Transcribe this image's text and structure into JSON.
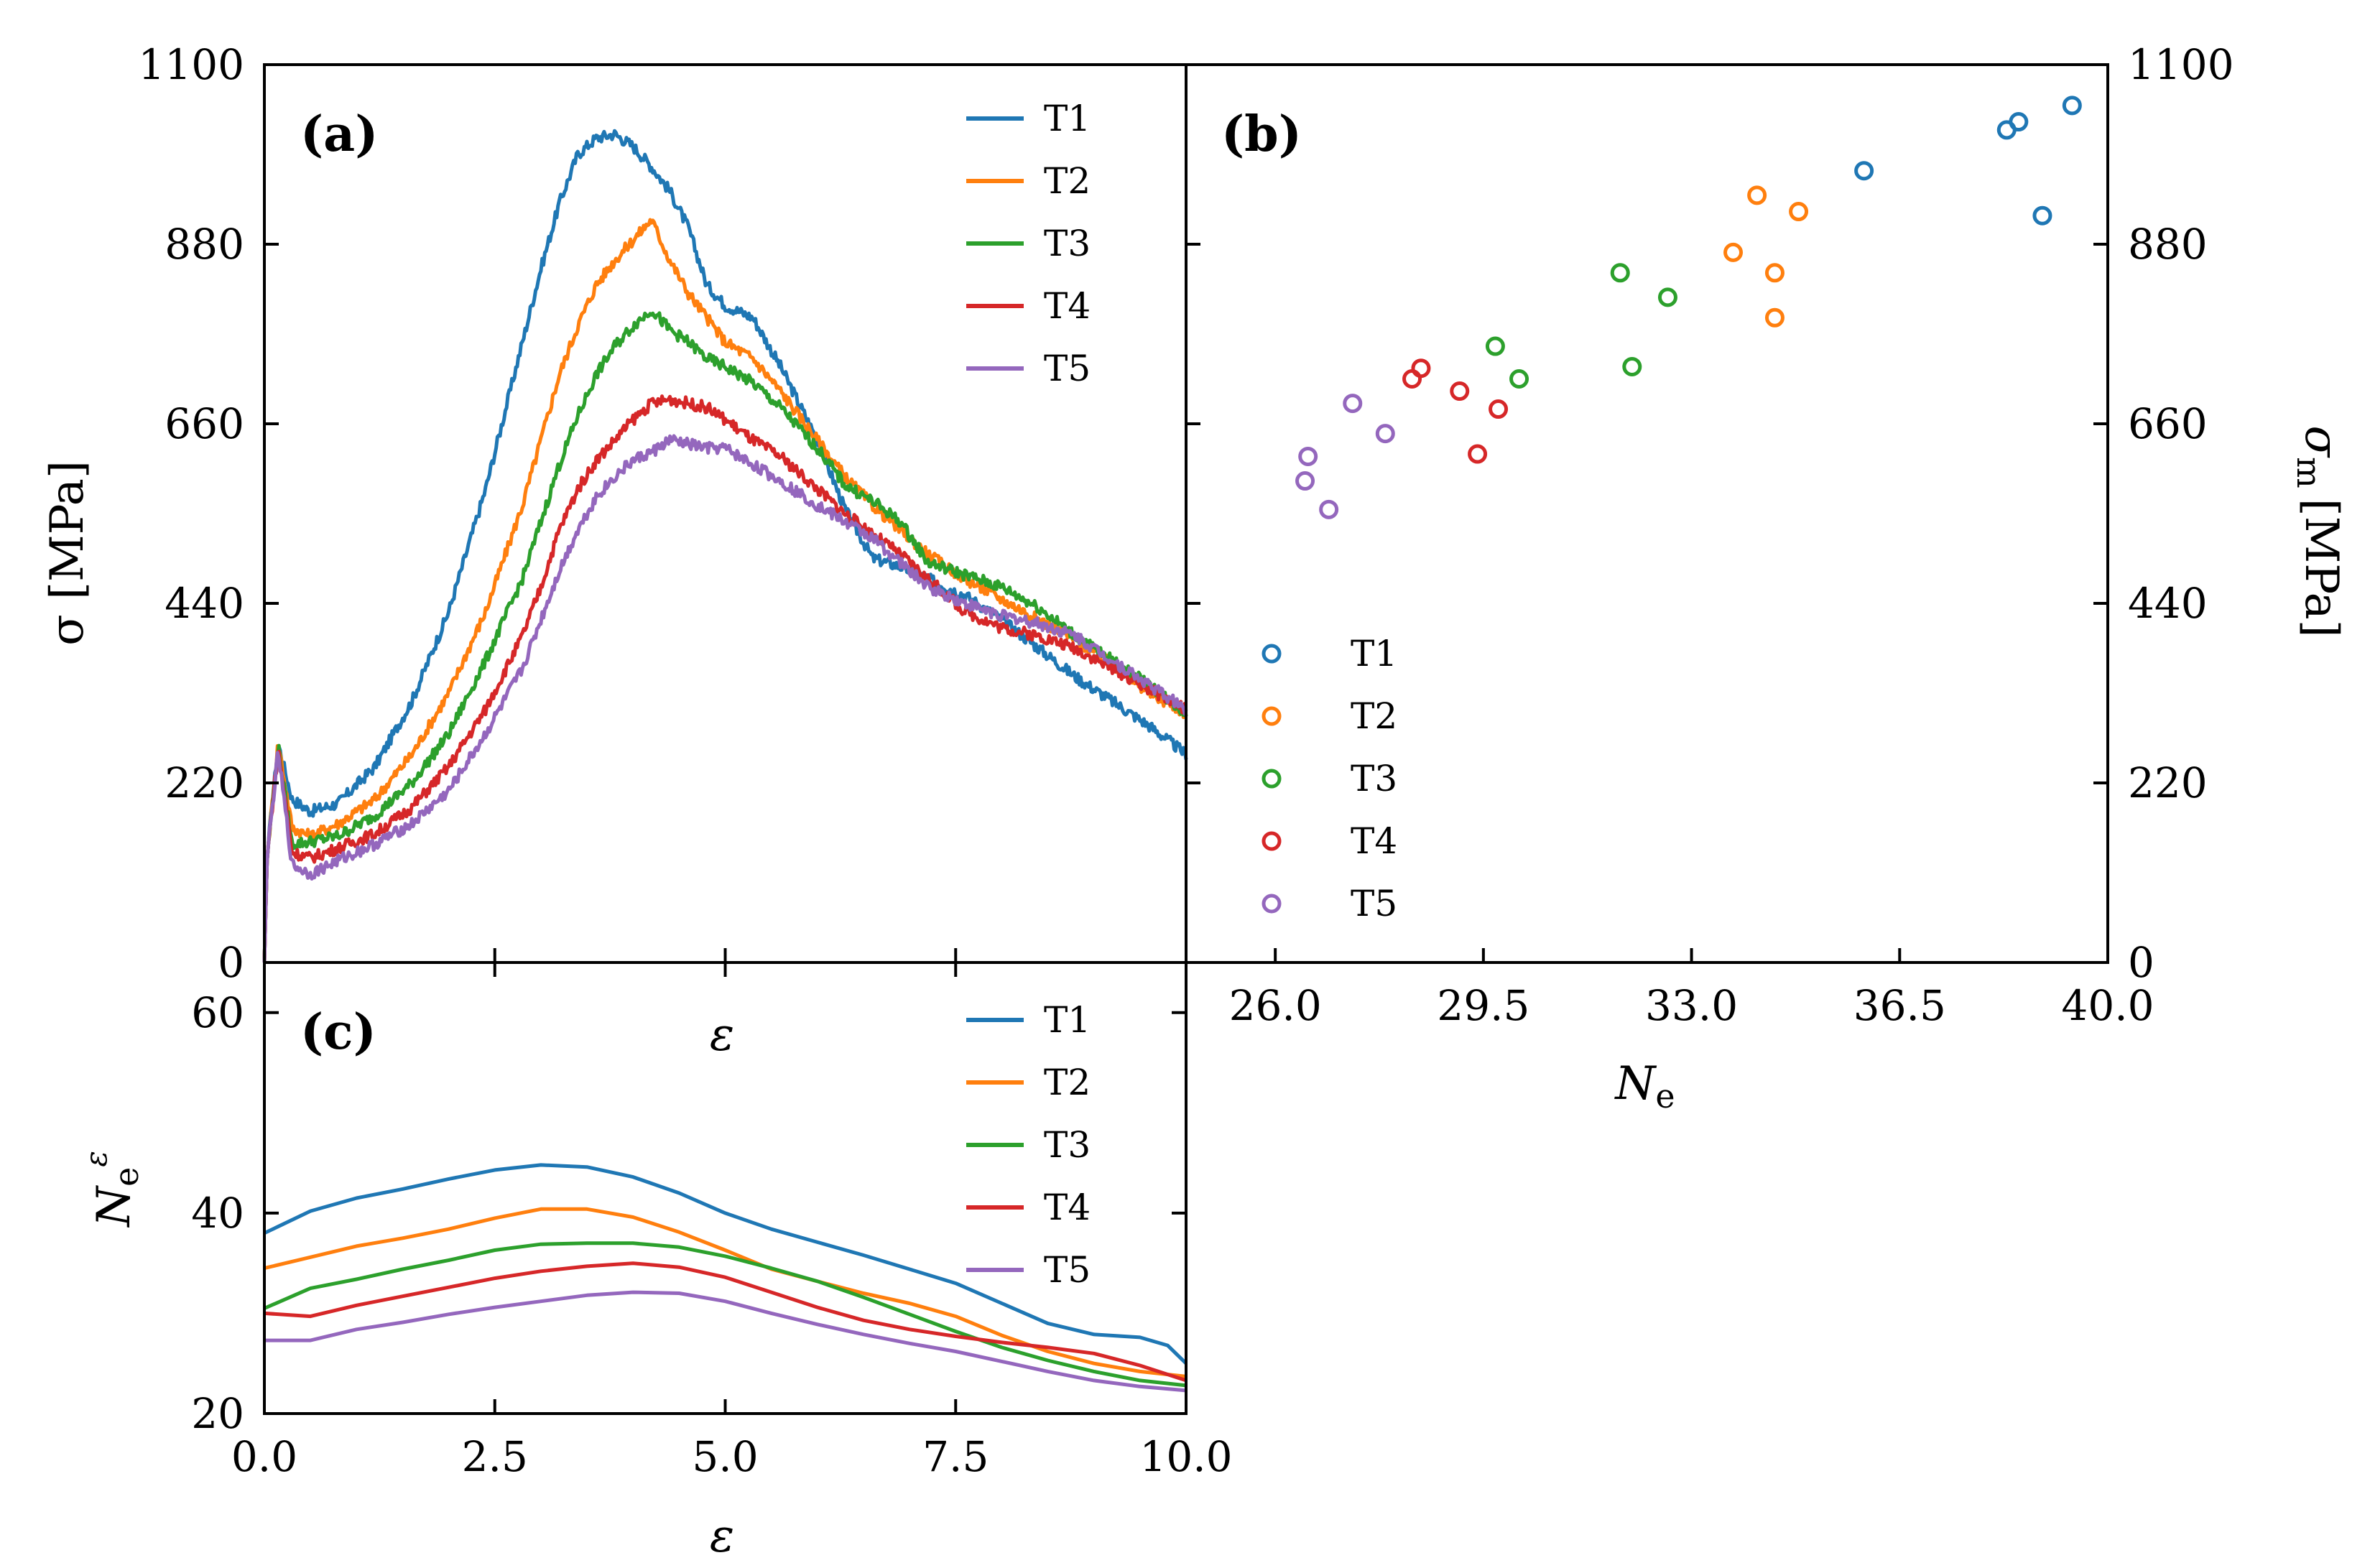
{
  "colors": {
    "T1": "#1f77b4",
    "T2": "#ff7f0e",
    "T3": "#2ca02c",
    "T4": "#d62728",
    "T5": "#9467bd"
  },
  "chart_data": [
    {
      "panel": "a",
      "panel_label": "(a)",
      "type": "line",
      "xlabel": "ε",
      "ylabel": "σ [MPa]",
      "xlim": [
        0,
        10
      ],
      "ylim": [
        0,
        1100
      ],
      "yticks": [
        0,
        220,
        440,
        660,
        880,
        1100
      ],
      "ytick_labels": [
        "0",
        "220",
        "440",
        "660",
        "880",
        "1100"
      ],
      "xticks": [
        2.5,
        5.0,
        7.5
      ],
      "legend": [
        "T1",
        "T2",
        "T3",
        "T4",
        "T5"
      ],
      "series": [
        {
          "name": "T1",
          "x": [
            0,
            0.03,
            0.15,
            0.3,
            0.5,
            0.8,
            1.2,
            1.6,
            2.0,
            2.4,
            2.8,
            3.0,
            3.2,
            3.4,
            3.6,
            3.8,
            4.0,
            4.2,
            4.4,
            4.6,
            4.8,
            5.0,
            5.3,
            5.6,
            6.0,
            6.3,
            6.6,
            6.9,
            7.2,
            7.6,
            8.0,
            8.4,
            8.8,
            9.2,
            9.6,
            10.0
          ],
          "y": [
            0,
            130,
            268,
            200,
            185,
            195,
            240,
            320,
            430,
            580,
            760,
            850,
            930,
            990,
            1010,
            1015,
            1000,
            975,
            945,
            900,
            830,
            805,
            790,
            730,
            640,
            555,
            495,
            485,
            470,
            450,
            420,
            385,
            350,
            320,
            290,
            255
          ]
        },
        {
          "name": "T2",
          "x": [
            0,
            0.03,
            0.15,
            0.3,
            0.5,
            0.8,
            1.2,
            1.6,
            2.0,
            2.4,
            2.8,
            3.0,
            3.2,
            3.4,
            3.6,
            3.8,
            4.0,
            4.2,
            4.4,
            4.6,
            4.8,
            5.0,
            5.3,
            5.6,
            6.0,
            6.3,
            6.6,
            6.9,
            7.2,
            7.6,
            8.0,
            8.4,
            8.8,
            9.2,
            9.6,
            10.0
          ],
          "y": [
            0,
            130,
            270,
            165,
            155,
            170,
            200,
            255,
            330,
            430,
            560,
            640,
            720,
            780,
            830,
            860,
            885,
            910,
            860,
            820,
            790,
            760,
            740,
            700,
            640,
            595,
            560,
            530,
            500,
            470,
            445,
            420,
            395,
            365,
            330,
            305
          ]
        },
        {
          "name": "T3",
          "x": [
            0,
            0.03,
            0.15,
            0.3,
            0.5,
            0.8,
            1.2,
            1.6,
            2.0,
            2.4,
            2.8,
            3.0,
            3.2,
            3.4,
            3.6,
            3.8,
            4.0,
            4.2,
            4.4,
            4.6,
            4.8,
            5.0,
            5.3,
            5.6,
            6.0,
            6.3,
            6.6,
            6.9,
            7.2,
            7.6,
            8.0,
            8.4,
            8.8,
            9.2,
            9.6,
            10.0
          ],
          "y": [
            0,
            130,
            265,
            145,
            148,
            155,
            180,
            220,
            280,
            370,
            470,
            540,
            610,
            670,
            720,
            755,
            780,
            800,
            775,
            760,
            740,
            730,
            710,
            680,
            630,
            585,
            565,
            540,
            490,
            475,
            460,
            435,
            400,
            370,
            340,
            305
          ]
        },
        {
          "name": "T4",
          "x": [
            0,
            0.03,
            0.15,
            0.3,
            0.5,
            0.8,
            1.2,
            1.6,
            2.0,
            2.4,
            2.8,
            3.0,
            3.2,
            3.4,
            3.6,
            3.8,
            4.0,
            4.2,
            4.4,
            4.6,
            4.8,
            5.0,
            5.3,
            5.6,
            6.0,
            6.3,
            6.6,
            6.9,
            7.2,
            7.6,
            8.0,
            8.4,
            8.8,
            9.2,
            9.6,
            10.0
          ],
          "y": [
            0,
            130,
            262,
            135,
            128,
            140,
            158,
            190,
            240,
            310,
            400,
            460,
            530,
            580,
            615,
            640,
            665,
            685,
            690,
            685,
            680,
            665,
            640,
            620,
            580,
            550,
            525,
            500,
            470,
            430,
            410,
            400,
            385,
            360,
            335,
            310
          ]
        },
        {
          "name": "T5",
          "x": [
            0,
            0.03,
            0.15,
            0.3,
            0.5,
            0.8,
            1.2,
            1.6,
            2.0,
            2.4,
            2.8,
            3.0,
            3.2,
            3.4,
            3.6,
            3.8,
            4.0,
            4.2,
            4.4,
            4.6,
            4.8,
            5.0,
            5.3,
            5.6,
            6.0,
            6.3,
            6.6,
            6.9,
            7.2,
            7.6,
            8.0,
            8.4,
            8.8,
            9.2,
            9.6,
            10.0
          ],
          "y": [
            0,
            130,
            258,
            120,
            108,
            125,
            145,
            170,
            210,
            280,
            360,
            420,
            480,
            530,
            570,
            595,
            615,
            625,
            640,
            635,
            630,
            630,
            610,
            590,
            560,
            540,
            520,
            490,
            460,
            440,
            425,
            415,
            400,
            370,
            340,
            310
          ]
        }
      ]
    },
    {
      "panel": "b",
      "panel_label": "(b)",
      "type": "scatter",
      "xlabel": "N_e",
      "xlabel_main": "N",
      "xlabel_sub": "e",
      "ylabel": "σ_m [MPa]",
      "ylabel_main": "σ",
      "ylabel_sub": "m",
      "ylabel_unit": "[MPa]",
      "xlim": [
        24.5,
        40
      ],
      "ylim": [
        0,
        1100
      ],
      "xticks": [
        26.0,
        29.5,
        33.0,
        36.5,
        40.0
      ],
      "xtick_labels": [
        "26.0",
        "29.5",
        "33.0",
        "36.5",
        "40.0"
      ],
      "yticks": [
        0,
        220,
        440,
        660,
        880,
        1100
      ],
      "ytick_labels": [
        "0",
        "220",
        "440",
        "660",
        "880",
        "1100"
      ],
      "legend": [
        "T1",
        "T2",
        "T3",
        "T4",
        "T5"
      ],
      "series": [
        {
          "name": "T1",
          "x": [
            35.9,
            38.3,
            38.5,
            38.9,
            39.4
          ],
          "y": [
            970,
            1020,
            1030,
            915,
            1050
          ]
        },
        {
          "name": "T2",
          "x": [
            33.7,
            34.1,
            34.4,
            34.4,
            34.8
          ],
          "y": [
            870,
            940,
            845,
            790,
            920
          ]
        },
        {
          "name": "T3",
          "x": [
            29.7,
            30.1,
            31.8,
            32.0,
            32.6
          ],
          "y": [
            755,
            715,
            845,
            730,
            815
          ]
        },
        {
          "name": "T4",
          "x": [
            28.3,
            28.45,
            29.1,
            29.4,
            29.75
          ],
          "y": [
            715,
            728,
            700,
            623,
            678
          ]
        },
        {
          "name": "T5",
          "x": [
            26.5,
            26.55,
            26.9,
            27.3,
            27.85
          ],
          "y": [
            590,
            620,
            555,
            685,
            648
          ]
        }
      ]
    },
    {
      "panel": "c",
      "panel_label": "(c)",
      "type": "line",
      "xlabel": "ε",
      "ylabel": "N_e^ε",
      "ylabel_main": "N",
      "ylabel_sub": "e",
      "ylabel_sup": "ε",
      "xlim": [
        0,
        10
      ],
      "ylim": [
        20,
        65
      ],
      "xticks": [
        0.0,
        2.5,
        5.0,
        7.5,
        10.0
      ],
      "xtick_labels": [
        "0.0",
        "2.5",
        "5.0",
        "7.5",
        "10.0"
      ],
      "yticks": [
        20,
        40,
        60
      ],
      "ytick_labels": [
        "20",
        "40",
        "60"
      ],
      "legend": [
        "T1",
        "T2",
        "T3",
        "T4",
        "T5"
      ],
      "series": [
        {
          "name": "T1",
          "x": [
            0,
            0.5,
            1.0,
            1.5,
            2.0,
            2.5,
            3.0,
            3.5,
            4.0,
            4.5,
            5.0,
            5.5,
            6.0,
            6.5,
            7.0,
            7.5,
            8.0,
            8.5,
            9.0,
            9.5,
            9.8,
            10.0
          ],
          "y": [
            38.0,
            40.2,
            41.5,
            42.4,
            43.4,
            44.3,
            44.8,
            44.6,
            43.6,
            42.0,
            40.0,
            38.4,
            37.1,
            35.8,
            34.4,
            33.0,
            31.0,
            29.0,
            27.9,
            27.6,
            26.8,
            25.0
          ]
        },
        {
          "name": "T2",
          "x": [
            0,
            0.5,
            1.0,
            1.5,
            2.0,
            2.5,
            3.0,
            3.5,
            4.0,
            4.5,
            5.0,
            5.5,
            6.0,
            6.5,
            7.0,
            7.5,
            8.0,
            8.5,
            9.0,
            9.5,
            10.0
          ],
          "y": [
            34.5,
            35.6,
            36.7,
            37.5,
            38.4,
            39.5,
            40.4,
            40.4,
            39.6,
            38.1,
            36.3,
            34.4,
            33.2,
            32.0,
            31.0,
            29.7,
            27.8,
            26.2,
            25.0,
            24.2,
            23.7
          ]
        },
        {
          "name": "T3",
          "x": [
            0,
            0.5,
            1.0,
            1.5,
            2.0,
            2.5,
            3.0,
            3.5,
            4.0,
            4.5,
            5.0,
            5.5,
            6.0,
            6.5,
            7.0,
            7.5,
            8.0,
            8.5,
            9.0,
            9.5,
            10.0
          ],
          "y": [
            30.5,
            32.5,
            33.4,
            34.4,
            35.3,
            36.3,
            36.9,
            37.0,
            37.0,
            36.6,
            35.7,
            34.5,
            33.2,
            31.6,
            29.9,
            28.2,
            26.6,
            25.3,
            24.2,
            23.3,
            22.8
          ]
        },
        {
          "name": "T4",
          "x": [
            0,
            0.5,
            1.0,
            1.5,
            2.0,
            2.5,
            3.0,
            3.5,
            4.0,
            4.5,
            5.0,
            5.5,
            6.0,
            6.5,
            7.0,
            7.5,
            8.0,
            8.5,
            9.0,
            9.5,
            10.0
          ],
          "y": [
            30.0,
            29.7,
            30.8,
            31.7,
            32.6,
            33.5,
            34.2,
            34.7,
            35.0,
            34.6,
            33.6,
            32.1,
            30.6,
            29.3,
            28.4,
            27.7,
            27.1,
            26.6,
            26.0,
            24.8,
            23.3
          ]
        },
        {
          "name": "T5",
          "x": [
            0,
            0.5,
            1.0,
            1.5,
            2.0,
            2.5,
            3.0,
            3.5,
            4.0,
            4.5,
            5.0,
            5.5,
            6.0,
            6.5,
            7.0,
            7.5,
            8.0,
            8.5,
            9.0,
            9.5,
            10.0
          ],
          "y": [
            27.3,
            27.3,
            28.4,
            29.1,
            29.9,
            30.6,
            31.2,
            31.8,
            32.1,
            32.0,
            31.2,
            30.0,
            28.9,
            27.9,
            27.0,
            26.2,
            25.2,
            24.2,
            23.3,
            22.7,
            22.3
          ]
        }
      ]
    }
  ]
}
